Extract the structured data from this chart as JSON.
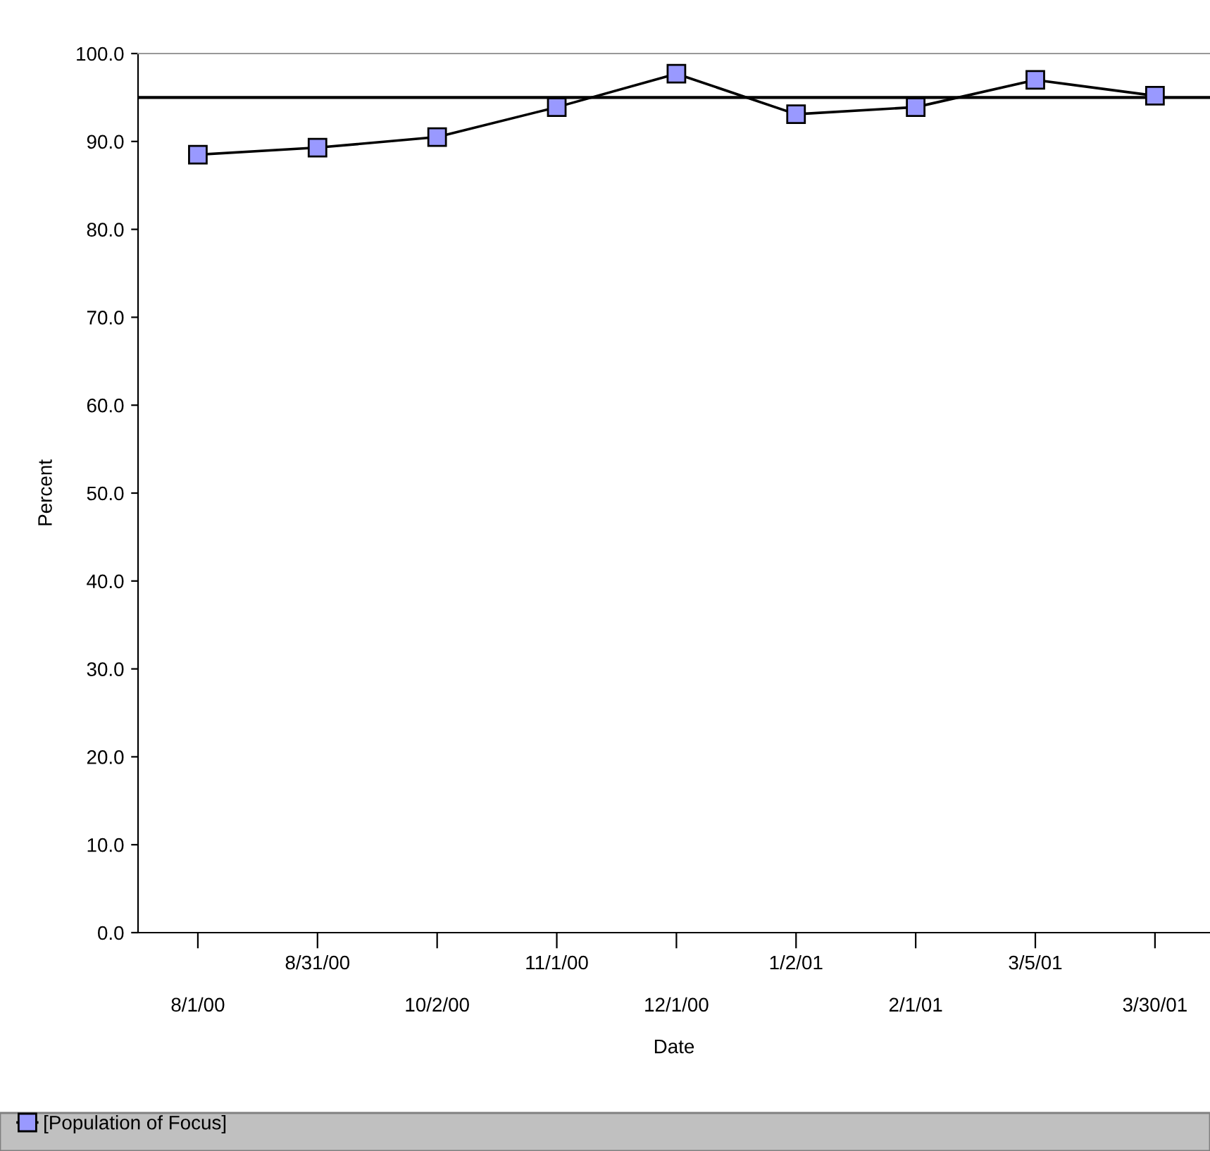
{
  "chart_data": {
    "type": "line",
    "xlabel": "Date",
    "ylabel": "Percent",
    "categories": [
      "8/1/00",
      "8/31/00",
      "10/2/00",
      "11/1/00",
      "12/1/00",
      "1/2/01",
      "2/1/01",
      "3/5/01",
      "3/30/01"
    ],
    "series": [
      {
        "name": "[Population of Focus]",
        "color": "#9999ff",
        "values": [
          88.5,
          89.3,
          90.5,
          93.9,
          97.7,
          93.1,
          93.9,
          97.0,
          95.2
        ]
      }
    ],
    "ylim": [
      0,
      100
    ],
    "yticks": [
      {
        "value": 0,
        "label": "0.0"
      },
      {
        "value": 10,
        "label": "10.0"
      },
      {
        "value": 20,
        "label": "20.0"
      },
      {
        "value": 30,
        "label": "30.0"
      },
      {
        "value": 40,
        "label": "40.0"
      },
      {
        "value": 50,
        "label": "50.0"
      },
      {
        "value": 60,
        "label": "60.0"
      },
      {
        "value": 70,
        "label": "70.0"
      },
      {
        "value": 80,
        "label": "80.0"
      },
      {
        "value": 90,
        "label": "90.0"
      },
      {
        "value": 100,
        "label": "100.0"
      }
    ],
    "ref_lines": [
      {
        "axis": "y",
        "value": 95,
        "color": "#000000"
      }
    ],
    "marker": "square",
    "line_style": "solid",
    "grid": false,
    "legend": "bottom"
  }
}
